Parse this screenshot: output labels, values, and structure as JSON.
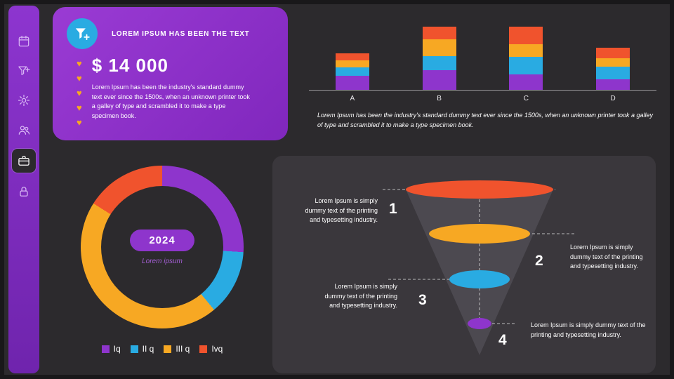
{
  "page": {
    "background": "#2C2A2D",
    "frame_color": "#19181A"
  },
  "sidebar": {
    "background": "#8433C8",
    "items": [
      {
        "icon": "calendar",
        "active": false
      },
      {
        "icon": "filter",
        "active": false
      },
      {
        "icon": "settings",
        "active": false
      },
      {
        "icon": "users",
        "active": false
      },
      {
        "icon": "briefcase",
        "active": true
      },
      {
        "icon": "lock",
        "active": false
      }
    ]
  },
  "stat_card": {
    "title": "LOREM IPSUM HAS BEEN THE TEXT",
    "amount": "$ 14 000",
    "description": "Lorem Ipsum has been the industry's standard dummy text ever since the 1500s, when an unknown printer took a galley of type and scrambled it to make a type specimen book.",
    "icon": "funnel-plus",
    "icon_bg": "#29ABE2",
    "hearts_count": 5,
    "hearts_color": "#F7A823",
    "background": "#8C33C9"
  },
  "captions": {
    "bar_chart": "Lorem Ipsum has been the industry's standard dummy text ever since the 1500s, when an unknown printer took a galley of type and scrambled it to make a type specimen book."
  },
  "donut": {
    "center_label": "2024",
    "sub_label": "Lorem ipsum"
  },
  "chart_data": [
    {
      "type": "bar",
      "stacked": true,
      "title": "",
      "categories": [
        "A",
        "B",
        "C",
        "D"
      ],
      "series": [
        {
          "name": "I q",
          "color": "#8E35CC",
          "values": [
            20,
            28,
            22,
            15
          ]
        },
        {
          "name": "II q",
          "color": "#29ABE2",
          "values": [
            12,
            20,
            25,
            18
          ]
        },
        {
          "name": "III q",
          "color": "#F7A823",
          "values": [
            10,
            24,
            18,
            12
          ]
        },
        {
          "name": "IV q",
          "color": "#F0532D",
          "values": [
            10,
            18,
            25,
            15
          ]
        }
      ],
      "xlabel": "",
      "ylabel": "",
      "ylim": [
        0,
        100
      ],
      "grid": false,
      "legend_position": "none"
    },
    {
      "type": "pie",
      "donut": true,
      "labels": [
        "Iq",
        "II q",
        "III q",
        "Ivq"
      ],
      "values": [
        26,
        13,
        45,
        16
      ],
      "colors": [
        "#8E35CC",
        "#29ABE2",
        "#F7A823",
        "#F0532D"
      ],
      "center_label": "2024",
      "sub_label": "Lorem ipsum",
      "start_angle_deg": 0,
      "legend_position": "bottom"
    },
    {
      "type": "funnel",
      "levels": [
        {
          "number": "1",
          "color": "#F0532D",
          "share": 100,
          "text": "Lorem Ipsum is simply dummy text of the printing and typesetting industry."
        },
        {
          "number": "2",
          "color": "#F7A823",
          "share": 69,
          "text": "Lorem Ipsum is simply dummy text of the printing and typesetting industry."
        },
        {
          "number": "3",
          "color": "#29ABE2",
          "share": 41,
          "text": "Lorem Ipsum is simply dummy text of the printing and typesetting industry."
        },
        {
          "number": "4",
          "color": "#8E35CC",
          "share": 16,
          "text": "Lorem Ipsum is simply dummy text of the printing and typesetting industry."
        }
      ]
    }
  ]
}
